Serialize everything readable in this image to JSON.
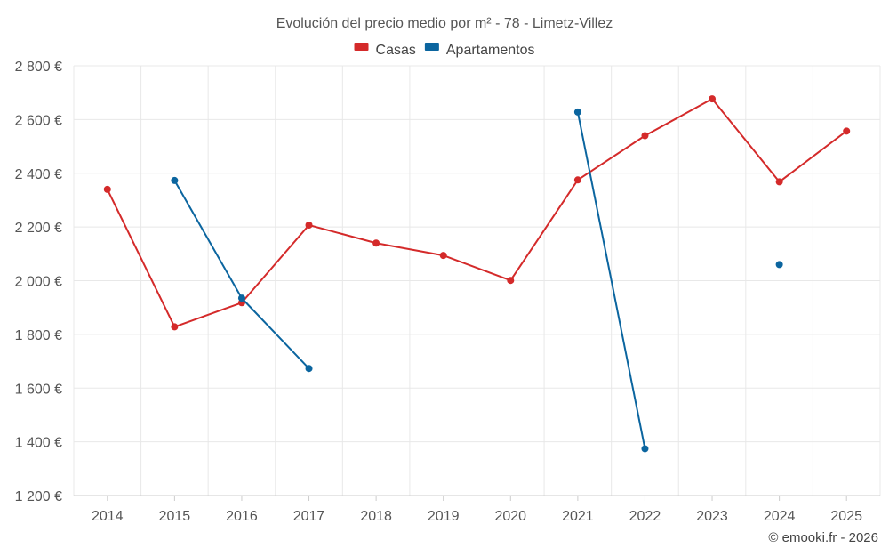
{
  "chart_data": {
    "type": "line",
    "title": "Evolución del precio medio por m² - 78 - Limetz-Villez",
    "categories": [
      "2014",
      "2015",
      "2016",
      "2017",
      "2018",
      "2019",
      "2020",
      "2021",
      "2022",
      "2023",
      "2024",
      "2025"
    ],
    "series": [
      {
        "name": "Casas",
        "color": "#d42a2a",
        "values": [
          2340,
          1828,
          1918,
          2207,
          2140,
          2094,
          2001,
          2375,
          2540,
          2677,
          2368,
          2557
        ]
      },
      {
        "name": "Apartamentos",
        "color": "#0b659f",
        "values": [
          null,
          2373,
          1935,
          1673,
          null,
          null,
          null,
          2628,
          1374,
          null,
          2060,
          null
        ]
      }
    ],
    "ylim": [
      1200,
      2800
    ],
    "yticks": [
      1200,
      1400,
      1600,
      1800,
      2000,
      2200,
      2400,
      2600,
      2800
    ],
    "ytick_labels": [
      "1 200 €",
      "1 400 €",
      "1 600 €",
      "1 800 €",
      "2 000 €",
      "2 200 €",
      "2 400 €",
      "2 600 €",
      "2 800 €"
    ],
    "grid": true,
    "legend_position": "top-center"
  },
  "credit": "© emooki.fr - 2026"
}
